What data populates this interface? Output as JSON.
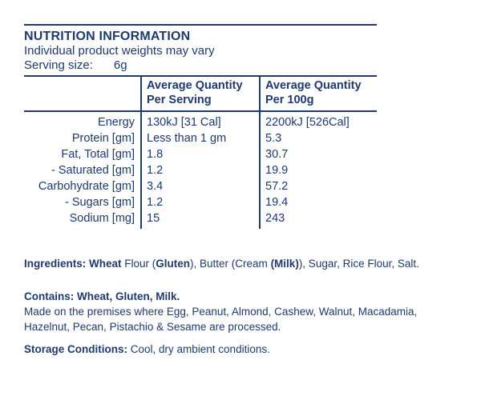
{
  "colors": {
    "text": "#1e3a6e",
    "rule": "#1e3a6e",
    "background": "#ffffff"
  },
  "header": {
    "title": "NUTRITION INFORMATION",
    "subtitle": "Individual product weights may vary",
    "serving_label": "Serving size:",
    "serving_value": "6g"
  },
  "table": {
    "columns": [
      {
        "line1": "",
        "line2": ""
      },
      {
        "line1": "Average Quantity",
        "line2": "Per Serving"
      },
      {
        "line1": "Average Quantity",
        "line2": "Per 100g"
      }
    ],
    "rows": [
      {
        "label": "Energy",
        "per_serving": "130kJ [31 Cal]",
        "per_100g": "2200kJ [526Cal]"
      },
      {
        "label": "Protein [gm]",
        "per_serving": "Less than 1 gm",
        "per_100g": "5.3"
      },
      {
        "label": "Fat, Total [gm]",
        "per_serving": "1.8",
        "per_100g": "30.7"
      },
      {
        "label": "- Saturated [gm]",
        "per_serving": "1.2",
        "per_100g": "19.9"
      },
      {
        "label": "Carbohydrate [gm]",
        "per_serving": "3.4",
        "per_100g": "57.2"
      },
      {
        "label": "- Sugars [gm]",
        "per_serving": "1.2",
        "per_100g": "19.4"
      },
      {
        "label": "Sodium [mg]",
        "per_serving": "15",
        "per_100g": "243"
      }
    ]
  },
  "ingredients": {
    "segments": [
      {
        "text": "Ingredients: Wheat",
        "bold": true
      },
      {
        "text": " Flour (",
        "bold": false
      },
      {
        "text": "Gluten",
        "bold": true
      },
      {
        "text": "), Butter (Cream ",
        "bold": false
      },
      {
        "text": "(Milk)",
        "bold": true
      },
      {
        "text": "), Sugar, Rice Flour, Salt.",
        "bold": false
      }
    ]
  },
  "allergens": {
    "contains": "Contains: Wheat, Gluten, Milk.",
    "may_contain_lines": [
      "Made on the premises where Egg, Peanut, Almond, Cashew, Walnut, Macadamia,",
      "Hazelnut, Pecan, Pistachio & Sesame are processed."
    ]
  },
  "storage": {
    "label": "Storage Conditions:",
    "value": " Cool, dry ambient conditions."
  }
}
